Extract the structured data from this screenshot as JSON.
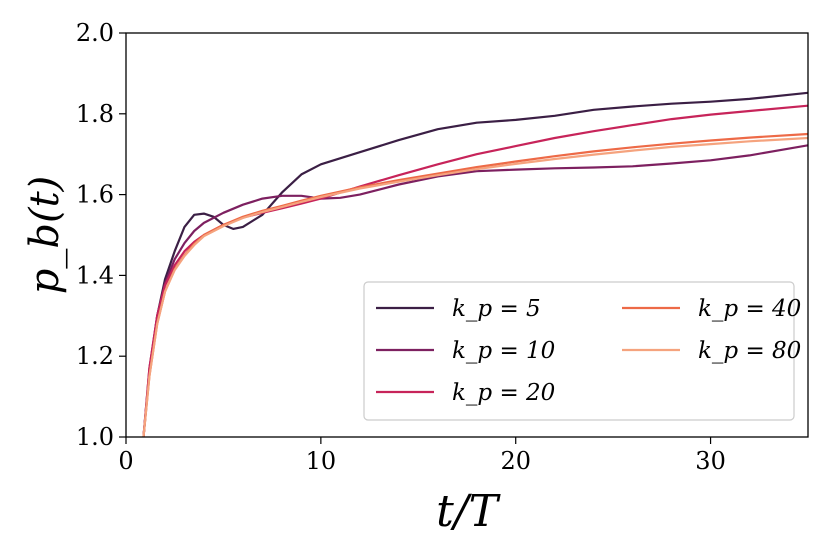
{
  "chart_data": {
    "type": "line",
    "xlabel": "t/T",
    "ylabel": "p_b(t)",
    "xlim": [
      0,
      35
    ],
    "ylim": [
      1.0,
      2.0
    ],
    "xticks": [
      0,
      10,
      20,
      30
    ],
    "yticks": [
      1.0,
      1.2,
      1.4,
      1.6,
      1.8,
      2.0
    ],
    "x_tick_labels": [
      "0",
      "10",
      "20",
      "30"
    ],
    "y_tick_labels": [
      "1.0",
      "1.2",
      "1.4",
      "1.6",
      "1.8",
      "2.0"
    ],
    "grid": false,
    "legend_position": "lower-right",
    "legend_columns": 2,
    "series": [
      {
        "name": "k_p = 5",
        "color": "#3b1f45",
        "x": [
          0.9,
          1.2,
          1.6,
          2.0,
          2.5,
          3.0,
          3.5,
          4.0,
          4.5,
          5.0,
          5.5,
          6.0,
          7.0,
          8.0,
          9.0,
          10.0,
          12.0,
          14.0,
          16.0,
          18.0,
          20.0,
          22.0,
          24.0,
          26.0,
          28.0,
          30.0,
          32.0,
          35.0
        ],
        "y": [
          1.0,
          1.16,
          1.3,
          1.39,
          1.46,
          1.52,
          1.55,
          1.553,
          1.545,
          1.525,
          1.515,
          1.52,
          1.55,
          1.605,
          1.65,
          1.675,
          1.705,
          1.735,
          1.762,
          1.778,
          1.785,
          1.795,
          1.81,
          1.818,
          1.825,
          1.83,
          1.837,
          1.852
        ]
      },
      {
        "name": "k_p = 10",
        "color": "#7d2060",
        "x": [
          0.9,
          1.2,
          1.6,
          2.0,
          2.5,
          3.0,
          3.5,
          4.0,
          5.0,
          6.0,
          7.0,
          8.0,
          9.0,
          10.0,
          11.0,
          12.0,
          14.0,
          16.0,
          18.0,
          20.0,
          22.0,
          24.0,
          26.0,
          28.0,
          30.0,
          32.0,
          35.0
        ],
        "y": [
          1.0,
          1.17,
          1.3,
          1.38,
          1.44,
          1.48,
          1.51,
          1.53,
          1.555,
          1.575,
          1.59,
          1.597,
          1.597,
          1.59,
          1.592,
          1.6,
          1.625,
          1.645,
          1.658,
          1.662,
          1.665,
          1.667,
          1.67,
          1.677,
          1.685,
          1.697,
          1.722
        ]
      },
      {
        "name": "k_p = 20",
        "color": "#c7245a",
        "x": [
          0.9,
          1.2,
          1.6,
          2.0,
          2.5,
          3.0,
          3.5,
          4.0,
          5.0,
          6.0,
          7.0,
          8.0,
          9.0,
          10.0,
          12.0,
          14.0,
          16.0,
          18.0,
          20.0,
          22.0,
          24.0,
          26.0,
          28.0,
          30.0,
          32.0,
          35.0
        ],
        "y": [
          1.0,
          1.17,
          1.3,
          1.375,
          1.425,
          1.46,
          1.483,
          1.5,
          1.525,
          1.543,
          1.555,
          1.566,
          1.578,
          1.59,
          1.62,
          1.648,
          1.675,
          1.7,
          1.72,
          1.74,
          1.757,
          1.772,
          1.787,
          1.798,
          1.807,
          1.82
        ]
      },
      {
        "name": "k_p = 40",
        "color": "#ed6a47",
        "x": [
          0.9,
          1.2,
          1.6,
          2.0,
          2.5,
          3.0,
          3.5,
          4.0,
          5.0,
          6.0,
          7.0,
          8.0,
          9.0,
          10.0,
          12.0,
          14.0,
          16.0,
          18.0,
          20.0,
          22.0,
          24.0,
          26.0,
          28.0,
          30.0,
          32.0,
          35.0
        ],
        "y": [
          1.0,
          1.15,
          1.28,
          1.36,
          1.415,
          1.45,
          1.478,
          1.5,
          1.525,
          1.545,
          1.56,
          1.572,
          1.585,
          1.597,
          1.618,
          1.636,
          1.652,
          1.668,
          1.682,
          1.695,
          1.707,
          1.717,
          1.726,
          1.734,
          1.741,
          1.75
        ]
      },
      {
        "name": "k_p = 80",
        "color": "#f5a37e",
        "x": [
          0.9,
          1.2,
          1.6,
          2.0,
          2.5,
          3.0,
          3.5,
          4.0,
          5.0,
          6.0,
          7.0,
          8.0,
          9.0,
          10.0,
          12.0,
          14.0,
          16.0,
          18.0,
          20.0,
          22.0,
          24.0,
          26.0,
          28.0,
          30.0,
          32.0,
          35.0
        ],
        "y": [
          1.0,
          1.15,
          1.28,
          1.36,
          1.413,
          1.448,
          1.475,
          1.497,
          1.522,
          1.542,
          1.557,
          1.569,
          1.582,
          1.594,
          1.615,
          1.632,
          1.648,
          1.663,
          1.676,
          1.688,
          1.699,
          1.709,
          1.718,
          1.725,
          1.732,
          1.74
        ]
      }
    ]
  }
}
